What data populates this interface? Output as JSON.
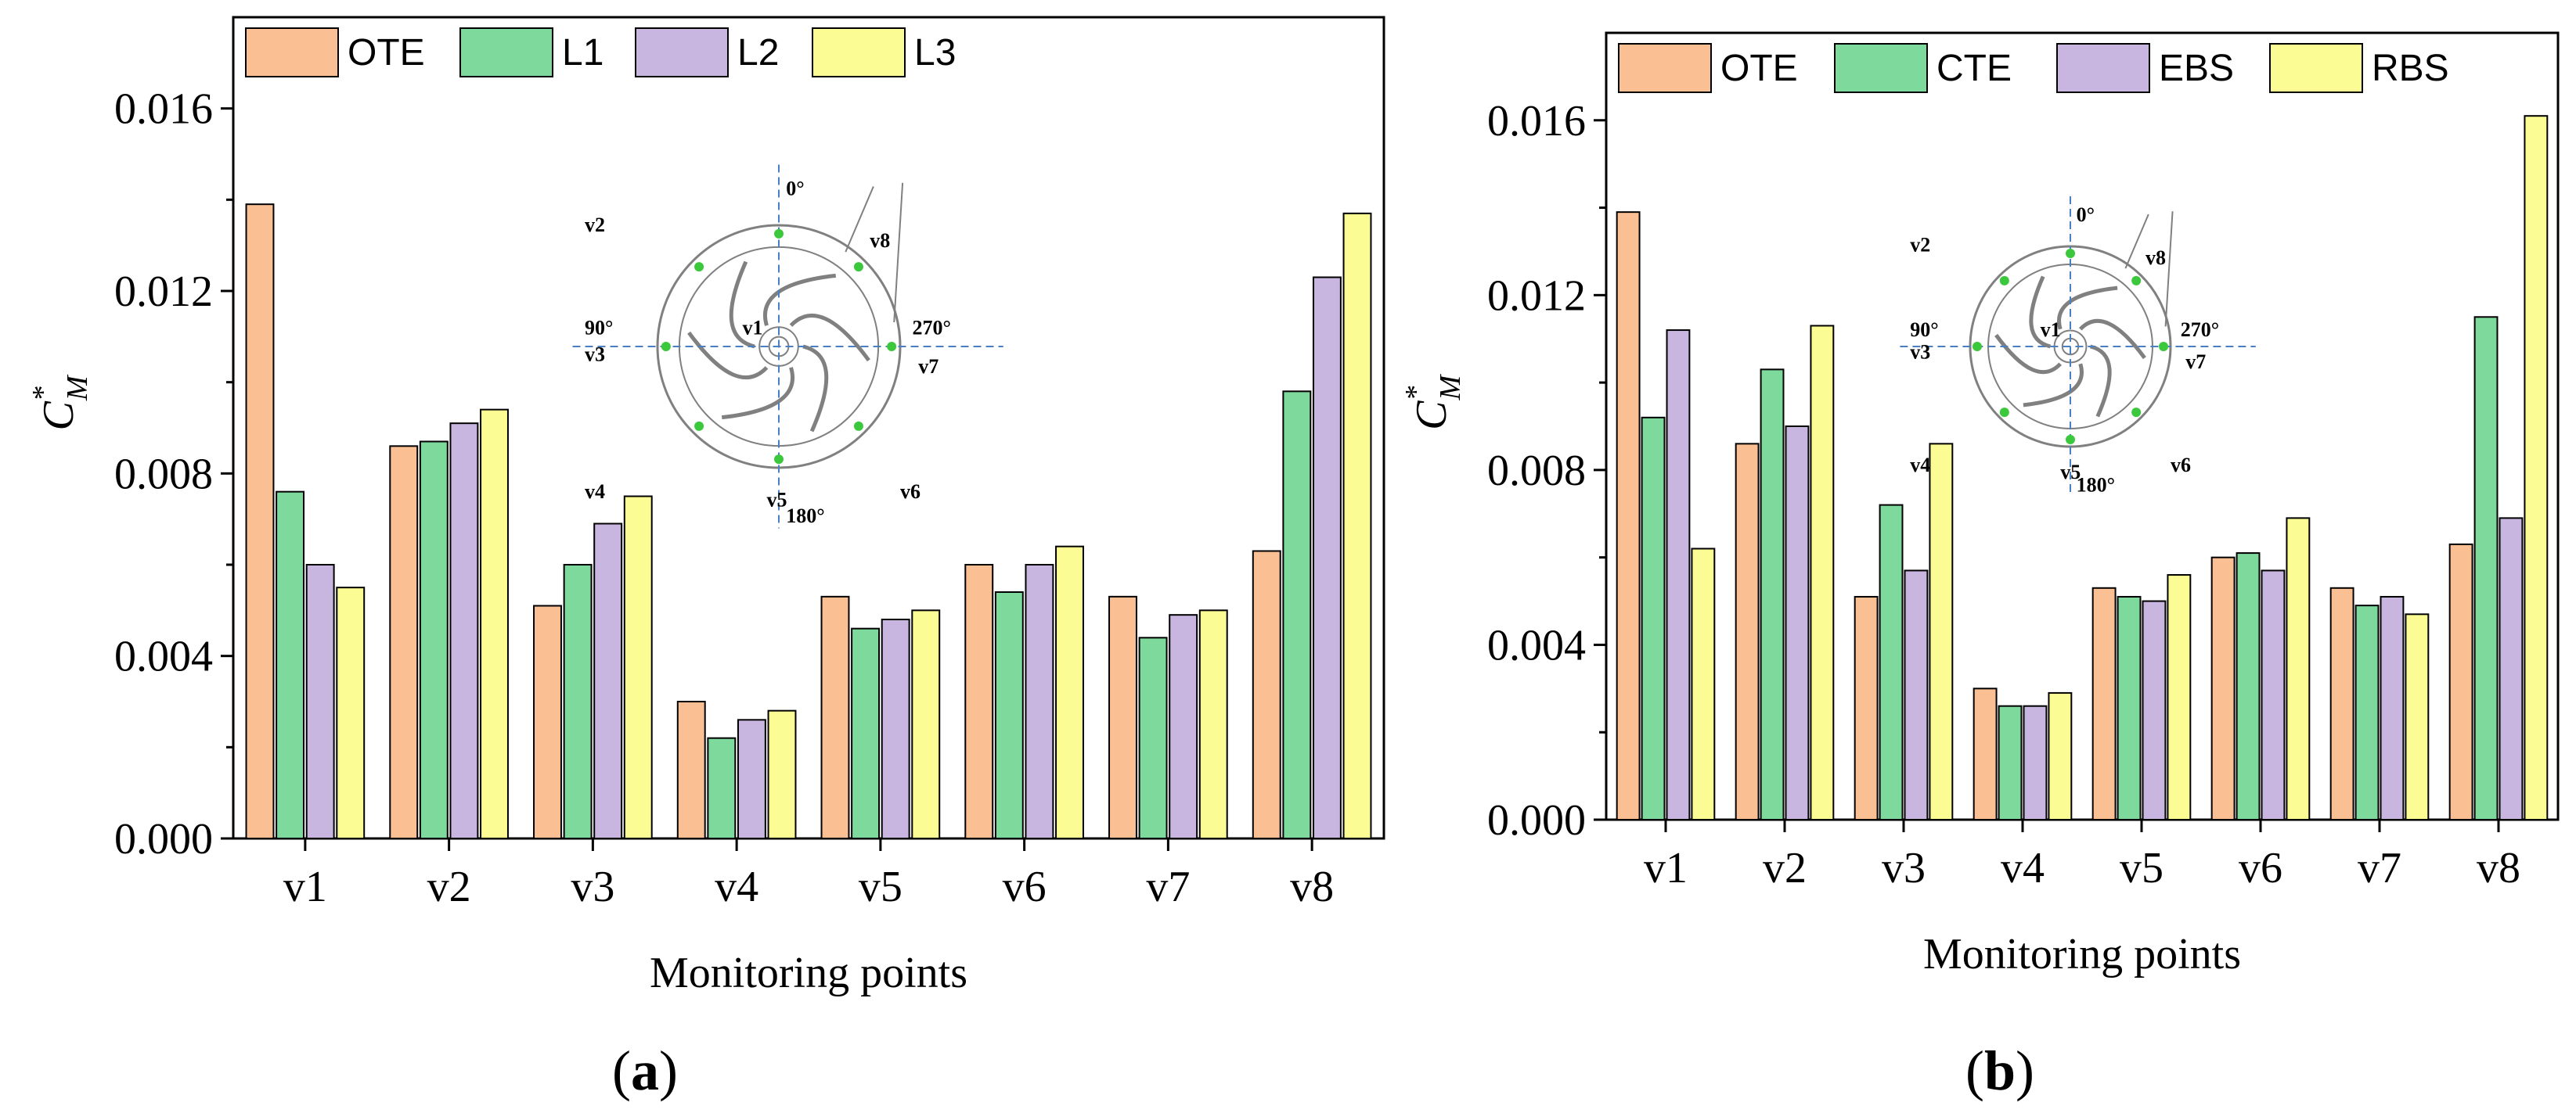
{
  "figure": {
    "panel_a_label_parts": [
      "(",
      "a",
      ")"
    ],
    "panel_b_label_parts": [
      "(",
      "b",
      ")"
    ]
  },
  "diagram": {
    "angles": {
      "top": "0°",
      "left": "90°",
      "right": "270°",
      "bottom": "180°"
    },
    "points": [
      "v1",
      "v2",
      "v3",
      "v4",
      "v5",
      "v6",
      "v7",
      "v8"
    ],
    "colors": {
      "point": "#3cc83c",
      "axis_line": "#4a7fc0",
      "outline": "#808080"
    }
  },
  "chart_data": [
    {
      "type": "bar",
      "panel": "a",
      "title": "",
      "xlabel": "Monitoring points",
      "ylabel_parts": {
        "base": "C",
        "sup": "*",
        "sub": "M"
      },
      "ylim": [
        0,
        0.018
      ],
      "yticks": [
        "0.000",
        "0.004",
        "0.008",
        "0.012",
        "0.016"
      ],
      "categories": [
        "v1",
        "v2",
        "v3",
        "v4",
        "v5",
        "v6",
        "v7",
        "v8"
      ],
      "legend_position": "top-left",
      "series": [
        {
          "name": "OTE",
          "color": "#fbbf94",
          "values": [
            0.0139,
            0.0086,
            0.0051,
            0.003,
            0.0053,
            0.006,
            0.0053,
            0.0063
          ]
        },
        {
          "name": "L1",
          "color": "#7ed99c",
          "values": [
            0.0076,
            0.0087,
            0.006,
            0.0022,
            0.0046,
            0.0054,
            0.0044,
            0.0098
          ]
        },
        {
          "name": "L2",
          "color": "#c8b5e0",
          "values": [
            0.006,
            0.0091,
            0.0069,
            0.0026,
            0.0048,
            0.006,
            0.0049,
            0.0123
          ]
        },
        {
          "name": "L3",
          "color": "#fcfc94",
          "values": [
            0.0055,
            0.0094,
            0.0075,
            0.0028,
            0.005,
            0.0064,
            0.005,
            0.0137
          ]
        }
      ]
    },
    {
      "type": "bar",
      "panel": "b",
      "title": "",
      "xlabel": "Monitoring points",
      "ylabel_parts": {
        "base": "C",
        "sup": "*",
        "sub": "M"
      },
      "ylim": [
        0,
        0.018
      ],
      "yticks": [
        "0.000",
        "0.004",
        "0.008",
        "0.012",
        "0.016"
      ],
      "categories": [
        "v1",
        "v2",
        "v3",
        "v4",
        "v5",
        "v6",
        "v7",
        "v8"
      ],
      "legend_position": "top-left",
      "series": [
        {
          "name": "OTE",
          "color": "#fbbf94",
          "values": [
            0.0139,
            0.0086,
            0.0051,
            0.003,
            0.0053,
            0.006,
            0.0053,
            0.0063
          ]
        },
        {
          "name": "CTE",
          "color": "#7ed99c",
          "values": [
            0.0092,
            0.0103,
            0.0072,
            0.0026,
            0.0051,
            0.0061,
            0.0049,
            0.0115
          ]
        },
        {
          "name": "EBS",
          "color": "#c8b5e0",
          "values": [
            0.0112,
            0.009,
            0.0057,
            0.0026,
            0.005,
            0.0057,
            0.0051,
            0.0069
          ]
        },
        {
          "name": "RBS",
          "color": "#fcfc94",
          "values": [
            0.0062,
            0.0113,
            0.0086,
            0.0029,
            0.0056,
            0.0069,
            0.0047,
            0.0161
          ]
        }
      ]
    }
  ]
}
